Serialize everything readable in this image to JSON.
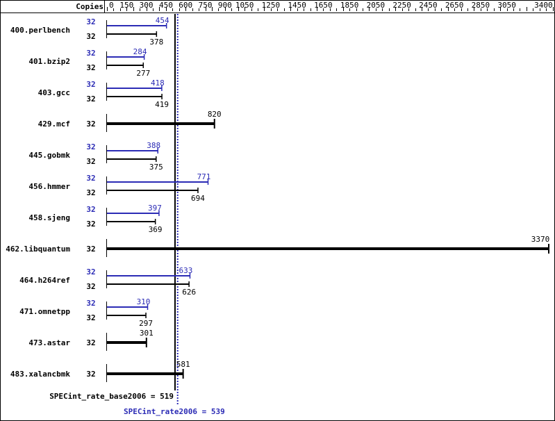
{
  "chart_data": {
    "type": "bar",
    "orientation": "horizontal",
    "axis_header": "Copies",
    "xlim": [
      0,
      3400
    ],
    "x_ticks": [
      0,
      150,
      300,
      450,
      600,
      750,
      900,
      1050,
      1250,
      1450,
      1650,
      1850,
      2050,
      2250,
      2450,
      2650,
      2850,
      3050,
      3400
    ],
    "benchmarks": [
      {
        "name": "400.perlbench",
        "peak_copies": "32",
        "peak": 454,
        "base_copies": "32",
        "base": 378
      },
      {
        "name": "401.bzip2",
        "peak_copies": "32",
        "peak": 284,
        "base_copies": "32",
        "base": 277
      },
      {
        "name": "403.gcc",
        "peak_copies": "32",
        "peak": 418,
        "base_copies": "32",
        "base": 419
      },
      {
        "name": "429.mcf",
        "base_copies": "32",
        "base": 820
      },
      {
        "name": "445.gobmk",
        "peak_copies": "32",
        "peak": 388,
        "base_copies": "32",
        "base": 375
      },
      {
        "name": "456.hmmer",
        "peak_copies": "32",
        "peak": 771,
        "base_copies": "32",
        "base": 694
      },
      {
        "name": "458.sjeng",
        "peak_copies": "32",
        "peak": 397,
        "base_copies": "32",
        "base": 369
      },
      {
        "name": "462.libquantum",
        "base_copies": "32",
        "base": 3370
      },
      {
        "name": "464.h264ref",
        "peak_copies": "32",
        "peak": 633,
        "base_copies": "32",
        "base": 626
      },
      {
        "name": "471.omnetpp",
        "peak_copies": "32",
        "peak": 310,
        "base_copies": "32",
        "base": 297
      },
      {
        "name": "473.astar",
        "base_copies": "32",
        "base": 301
      },
      {
        "name": "483.xalancbmk",
        "base_copies": "32",
        "base": 581
      }
    ],
    "base_mean": {
      "label": "SPECint_rate_base2006 = 519",
      "value": 519
    },
    "peak_mean": {
      "label": "SPECint_rate2006 = 539",
      "value": 539
    },
    "colors": {
      "base": "#000000",
      "peak": "#2b2bb5"
    }
  }
}
